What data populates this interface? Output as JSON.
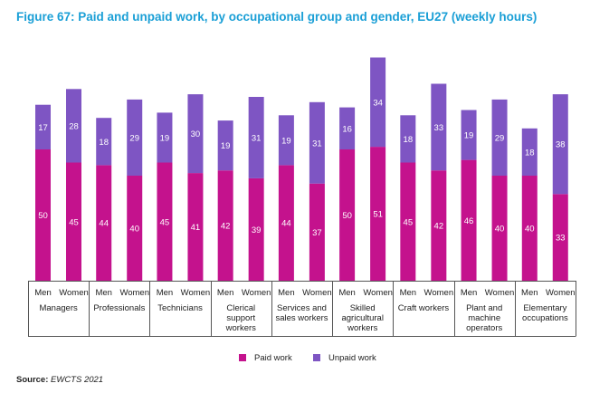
{
  "title": "Figure 67: Paid and unpaid work, by occupational group and gender, EU27 (weekly hours)",
  "source_label": "Source:",
  "source_value": "EWCTS 2021",
  "colors": {
    "paid": "#c4128d",
    "unpaid": "#7e55c3",
    "title": "#1a9fd6"
  },
  "chart_data": {
    "type": "bar",
    "stacked": true,
    "groups": [
      {
        "name": [
          "Managers"
        ],
        "men": [
          50,
          17
        ],
        "women": [
          45,
          28
        ]
      },
      {
        "name": [
          "Professionals"
        ],
        "men": [
          44,
          18
        ],
        "women": [
          40,
          29
        ]
      },
      {
        "name": [
          "Technicians"
        ],
        "men": [
          45,
          19
        ],
        "women": [
          41,
          30
        ]
      },
      {
        "name": [
          "Clerical",
          "support",
          "workers"
        ],
        "men": [
          42,
          19
        ],
        "women": [
          39,
          31
        ]
      },
      {
        "name": [
          "Services and",
          "sales workers"
        ],
        "men": [
          44,
          19
        ],
        "women": [
          37,
          31
        ]
      },
      {
        "name": [
          "Skilled",
          "agricultural",
          "workers"
        ],
        "men": [
          50,
          16
        ],
        "women": [
          51,
          34
        ]
      },
      {
        "name": [
          "Craft workers"
        ],
        "men": [
          45,
          18
        ],
        "women": [
          42,
          33
        ]
      },
      {
        "name": [
          "Plant and",
          "machine",
          "operators"
        ],
        "men": [
          46,
          19
        ],
        "women": [
          40,
          29
        ]
      },
      {
        "name": [
          "Elementary",
          "occupations"
        ],
        "men": [
          40,
          18
        ],
        "women": [
          33,
          38
        ]
      }
    ],
    "sub_categories": [
      "Men",
      "Women"
    ],
    "series": [
      {
        "name": "Paid work",
        "color": "#c4128d"
      },
      {
        "name": "Unpaid work",
        "color": "#7e55c3"
      }
    ],
    "ylim": [
      0,
      90
    ],
    "legend": "bottom-center",
    "grid": false
  }
}
